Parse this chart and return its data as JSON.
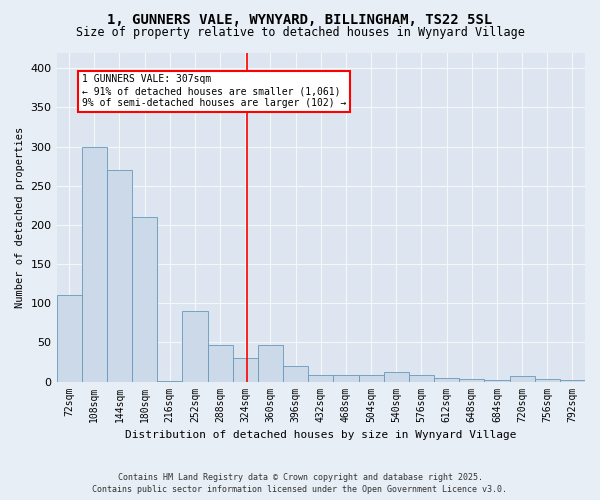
{
  "title": "1, GUNNERS VALE, WYNYARD, BILLINGHAM, TS22 5SL",
  "subtitle": "Size of property relative to detached houses in Wynyard Village",
  "xlabel": "Distribution of detached houses by size in Wynyard Village",
  "ylabel": "Number of detached properties",
  "footer": "Contains HM Land Registry data © Crown copyright and database right 2025.\nContains public sector information licensed under the Open Government Licence v3.0.",
  "bin_labels": [
    "72sqm",
    "108sqm",
    "144sqm",
    "180sqm",
    "216sqm",
    "252sqm",
    "288sqm",
    "324sqm",
    "360sqm",
    "396sqm",
    "432sqm",
    "468sqm",
    "504sqm",
    "540sqm",
    "576sqm",
    "612sqm",
    "648sqm",
    "684sqm",
    "720sqm",
    "756sqm",
    "792sqm"
  ],
  "bar_heights": [
    110,
    300,
    270,
    210,
    1,
    90,
    47,
    30,
    47,
    20,
    8,
    8,
    8,
    12,
    8,
    5,
    3,
    2,
    7,
    3,
    2
  ],
  "bar_color": "#ccd9e8",
  "bar_edge_color": "#6699bb",
  "vline_x": 7.08,
  "annotation_text": "1 GUNNERS VALE: 307sqm\n← 91% of detached houses are smaller (1,061)\n9% of semi-detached houses are larger (102) →",
  "ylim": [
    0,
    420
  ],
  "yticks": [
    0,
    50,
    100,
    150,
    200,
    250,
    300,
    350,
    400
  ],
  "fig_bg": "#e8eef5",
  "axes_bg": "#dde6f0",
  "grid_color": "#f5f7fa",
  "title_fontsize": 10,
  "subtitle_fontsize": 8.5,
  "ylabel_fontsize": 7.5,
  "xlabel_fontsize": 8,
  "tick_fontsize": 7,
  "footer_fontsize": 6
}
